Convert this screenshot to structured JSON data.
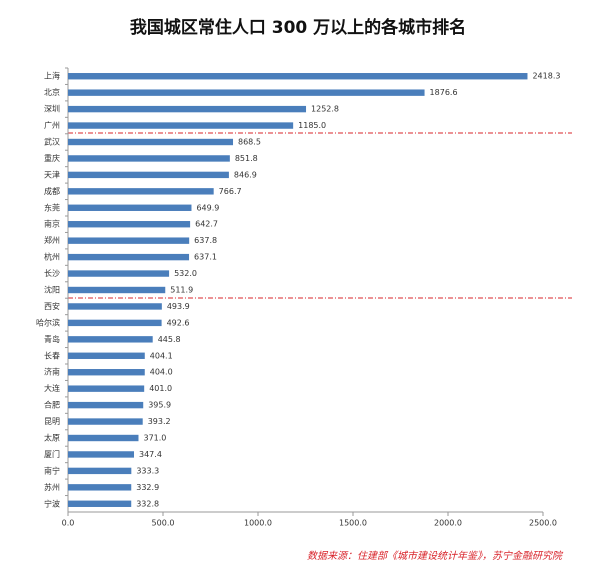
{
  "chart_data": {
    "type": "bar",
    "orientation": "horizontal",
    "title": "我国城区常住人口 300 万以上的各城市排名",
    "source": "数据来源：住建部《城市建设统计年鉴》，苏宁金融研究院",
    "categories": [
      "上海",
      "北京",
      "深圳",
      "广州",
      "武汉",
      "重庆",
      "天津",
      "成都",
      "东莞",
      "南京",
      "郑州",
      "杭州",
      "长沙",
      "沈阳",
      "西安",
      "哈尔滨",
      "青岛",
      "长春",
      "济南",
      "大连",
      "合肥",
      "昆明",
      "太原",
      "厦门",
      "南宁",
      "苏州",
      "宁波"
    ],
    "values": [
      2418.3,
      1876.6,
      1252.8,
      1185.0,
      868.5,
      851.8,
      846.9,
      766.7,
      649.9,
      642.7,
      637.8,
      637.1,
      532.0,
      511.9,
      493.9,
      492.6,
      445.8,
      404.1,
      404.0,
      401.0,
      395.9,
      393.2,
      371.0,
      347.4,
      333.3,
      332.9,
      332.8
    ],
    "value_labels": [
      "2418.3",
      "1876.6",
      "1252.8",
      "1185.0",
      "868.5",
      "851.8",
      "846.9",
      "766.7",
      "649.9",
      "642.7",
      "637.8",
      "637.1",
      "532.0",
      "511.9",
      "493.9",
      "492.6",
      "445.8",
      "404.1",
      "404.0",
      "401.0",
      "395.9",
      "393.2",
      "371.0",
      "347.4",
      "333.3",
      "332.9",
      "332.8"
    ],
    "color": "#4a7ebb",
    "xlim": [
      0,
      2500
    ],
    "xticks": [
      {
        "value": 0,
        "label": "0.0"
      },
      {
        "value": 500,
        "label": "500.0"
      },
      {
        "value": 1000,
        "label": "1000.0"
      },
      {
        "value": 1500,
        "label": "1500.0"
      },
      {
        "value": 2000,
        "label": "2000.0"
      },
      {
        "value": 2500,
        "label": "2500.0"
      }
    ],
    "grid": false
  }
}
